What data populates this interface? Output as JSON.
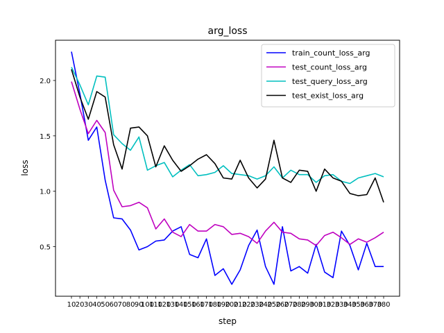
{
  "chart_data": {
    "type": "line",
    "title": "arg_loss",
    "xlabel": "step",
    "ylabel": "loss",
    "x": [
      10,
      20,
      30,
      40,
      50,
      60,
      70,
      80,
      90,
      100,
      110,
      120,
      130,
      140,
      150,
      160,
      170,
      180,
      190,
      200,
      210,
      220,
      230,
      240,
      250,
      260,
      270,
      280,
      290,
      300,
      310,
      320,
      330,
      340,
      350,
      360,
      370,
      380
    ],
    "xticklabels": [
      "10",
      "20",
      "30",
      "40",
      "50",
      "60",
      "70",
      "80",
      "90",
      "100",
      "110",
      "120",
      "130",
      "140",
      "150",
      "160",
      "170",
      "180",
      "190",
      "200",
      "210",
      "220",
      "230",
      "240",
      "250",
      "260",
      "270",
      "280",
      "290",
      "300",
      "310",
      "320",
      "330",
      "340",
      "350",
      "360",
      "370",
      "380"
    ],
    "yticks": [
      0.5,
      1.0,
      1.5,
      2.0
    ],
    "yticklabels": [
      "0.5",
      "1.0",
      "1.5",
      "2.0"
    ],
    "ylim": [
      0.0,
      2.35
    ],
    "grid": false,
    "legend_position": "top-right",
    "series": [
      {
        "name": "train_count_loss_arg",
        "color": "#0000ff",
        "values": [
          2.26,
          1.88,
          1.46,
          1.58,
          1.1,
          0.76,
          0.75,
          0.65,
          0.47,
          0.5,
          0.55,
          0.56,
          0.64,
          0.68,
          0.43,
          0.4,
          0.57,
          0.24,
          0.3,
          0.16,
          0.29,
          0.51,
          0.65,
          0.32,
          0.16,
          0.68,
          0.28,
          0.32,
          0.26,
          0.52,
          0.27,
          0.22,
          0.64,
          0.51,
          0.29,
          0.53,
          0.32,
          0.32
        ]
      },
      {
        "name": "test_count_loss_arg",
        "color": "#bf00bf",
        "values": [
          1.99,
          1.74,
          1.52,
          1.64,
          1.53,
          1.01,
          0.86,
          0.87,
          0.9,
          0.85,
          0.66,
          0.75,
          0.63,
          0.59,
          0.7,
          0.64,
          0.64,
          0.7,
          0.68,
          0.61,
          0.62,
          0.59,
          0.53,
          0.64,
          0.72,
          0.63,
          0.62,
          0.57,
          0.56,
          0.51,
          0.6,
          0.63,
          0.58,
          0.52,
          0.57,
          0.54,
          0.58,
          0.63
        ]
      },
      {
        "name": "test_query_loss_arg",
        "color": "#00bfbf",
        "values": [
          2.12,
          1.96,
          1.78,
          2.04,
          2.03,
          1.51,
          1.43,
          1.37,
          1.49,
          1.19,
          1.23,
          1.26,
          1.13,
          1.19,
          1.24,
          1.14,
          1.15,
          1.17,
          1.23,
          1.16,
          1.15,
          1.14,
          1.11,
          1.14,
          1.22,
          1.12,
          1.19,
          1.15,
          1.15,
          1.08,
          1.14,
          1.15,
          1.09,
          1.07,
          1.12,
          1.14,
          1.16,
          1.13
        ]
      },
      {
        "name": "test_exist_loss_arg",
        "color": "#000000",
        "values": [
          2.1,
          1.85,
          1.65,
          1.9,
          1.85,
          1.42,
          1.2,
          1.57,
          1.58,
          1.5,
          1.22,
          1.41,
          1.28,
          1.18,
          1.23,
          1.29,
          1.33,
          1.25,
          1.12,
          1.11,
          1.28,
          1.12,
          1.03,
          1.11,
          1.46,
          1.12,
          1.08,
          1.19,
          1.18,
          1.0,
          1.2,
          1.12,
          1.09,
          0.98,
          0.96,
          0.97,
          1.12,
          0.9
        ]
      }
    ]
  }
}
